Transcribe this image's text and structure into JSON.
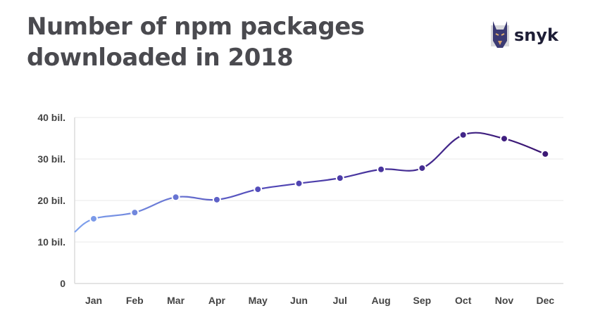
{
  "title_line1": "Number of npm packages",
  "title_line2": "downloaded in 2018",
  "logo": {
    "text": "snyk",
    "icon": "doberman-logo-icon"
  },
  "chart_data": {
    "type": "line",
    "title": "Number of npm packages downloaded in 2018",
    "xlabel": "",
    "ylabel": "",
    "categories": [
      "Jan",
      "Feb",
      "Mar",
      "Apr",
      "May",
      "Jun",
      "Jul",
      "Aug",
      "Sep",
      "Oct",
      "Nov",
      "Dec"
    ],
    "values": [
      15.6,
      17.1,
      20.8,
      20.2,
      22.7,
      24.1,
      25.4,
      27.5,
      27.8,
      35.8,
      34.9,
      31.2
    ],
    "line_start_value": 12.4,
    "unit": "billion downloads",
    "ylim": [
      0,
      40
    ],
    "yticks": [
      {
        "value": 0,
        "label": "0"
      },
      {
        "value": 10,
        "label": "10 bil."
      },
      {
        "value": 20,
        "label": "20 bil."
      },
      {
        "value": 30,
        "label": "30 bil."
      },
      {
        "value": 40,
        "label": "40 bil."
      }
    ],
    "grid": true,
    "smooth": true,
    "colors": {
      "start": "#7fa3ee",
      "mid": "#5148b8",
      "end": "#3a1470",
      "grid": "#f0f0f0",
      "axis": "#dcdcdc"
    }
  }
}
